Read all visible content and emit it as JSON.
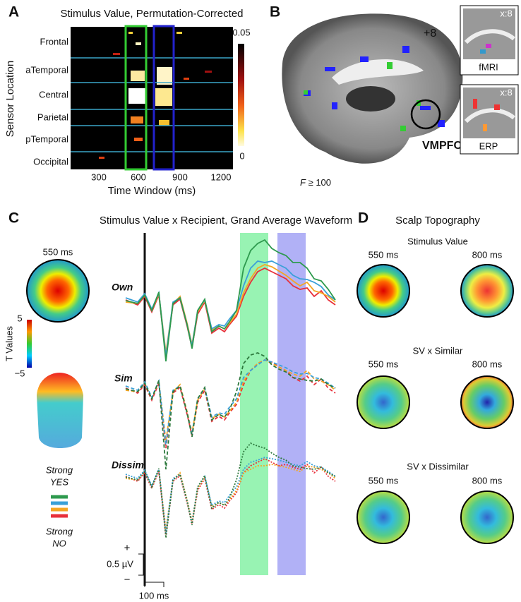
{
  "panel_a": {
    "label": "A",
    "title": "Stimulus Value, Permutation-Corrected",
    "y_axis_label": "Sensor Location",
    "sensors": [
      "Frontal",
      "aTemporal",
      "Central",
      "Parietal",
      "pTemporal",
      "Occipital"
    ],
    "x_axis_label": "Time Window (ms)",
    "x_ticks": [
      "300",
      "600",
      "900",
      "1200"
    ],
    "colorbar_top": "0.05",
    "colorbar_bottom": "0"
  },
  "panel_b": {
    "label": "B",
    "slice": "+8",
    "inset_fmri": {
      "coord": "x:8",
      "label": "fMRI"
    },
    "inset_erp": {
      "coord": "x:8",
      "label": "ERP"
    },
    "region": "VMPFC",
    "threshold_symbol": "F",
    "threshold": "≥ 100"
  },
  "panel_c": {
    "label": "C",
    "title": "Stimulus Value x Recipient, Grand Average Waveform",
    "topo_time": "550 ms",
    "colorbar_top": "5",
    "colorbar_title": "T Values",
    "colorbar_bottom": "−5",
    "rows": [
      "Own",
      "Sim",
      "Dissim"
    ],
    "legend_top": {
      "line1": "Strong",
      "line2": "YES"
    },
    "legend_bottom": {
      "line1": "Strong",
      "line2": "NO"
    },
    "scale_plus": "+",
    "scale_amplitude": "0.5 µV",
    "scale_minus": "−",
    "scale_time": "100 ms"
  },
  "panel_d": {
    "label": "D",
    "title": "Scalp Topography",
    "sections": [
      {
        "title": "Stimulus Value",
        "times": [
          "550 ms",
          "800 ms"
        ]
      },
      {
        "title": "SV x Similar",
        "times": [
          "550 ms",
          "800 ms"
        ]
      },
      {
        "title": "SV x Dissimilar",
        "times": [
          "550 ms",
          "800 ms"
        ]
      }
    ]
  }
}
